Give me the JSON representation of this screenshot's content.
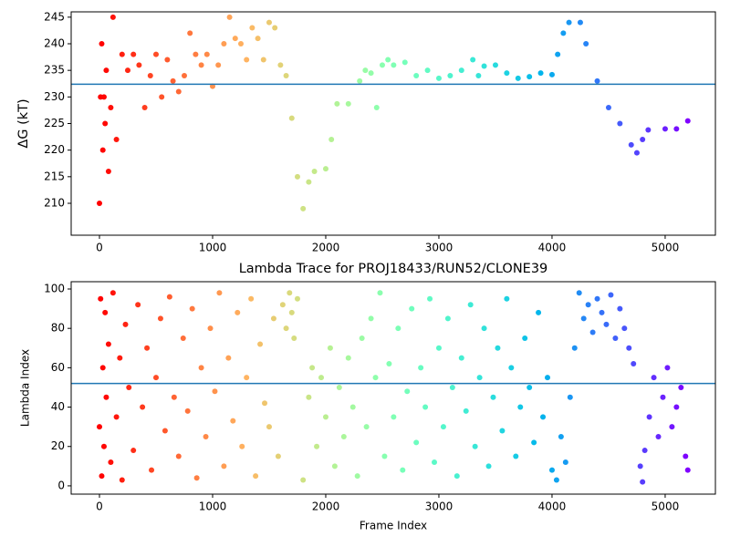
{
  "chart_data": [
    {
      "type": "scatter",
      "ylabel": "ΔG (kT)",
      "colormap": "rainbow_r",
      "x": [
        0,
        10,
        20,
        30,
        40,
        50,
        60,
        80,
        100,
        120,
        150,
        200,
        250,
        300,
        350,
        400,
        450,
        500,
        550,
        600,
        650,
        700,
        750,
        800,
        850,
        900,
        950,
        1000,
        1050,
        1100,
        1150,
        1200,
        1250,
        1300,
        1350,
        1400,
        1450,
        1500,
        1550,
        1600,
        1650,
        1700,
        1750,
        1800,
        1850,
        1900,
        2000,
        2050,
        2100,
        2200,
        2300,
        2350,
        2400,
        2450,
        2500,
        2550,
        2600,
        2700,
        2800,
        2900,
        3000,
        3100,
        3200,
        3300,
        3350,
        3400,
        3500,
        3600,
        3700,
        3800,
        3900,
        4000,
        4050,
        4100,
        4150,
        4250,
        4300,
        4400,
        4500,
        4600,
        4700,
        4750,
        4800,
        4850,
        5000,
        5100,
        5200
      ],
      "values": [
        210,
        230,
        240,
        220,
        230,
        225,
        235,
        216,
        228,
        245,
        222,
        238,
        235,
        238,
        236,
        228,
        234,
        238,
        230,
        237,
        233,
        231,
        234,
        242,
        238,
        236,
        238,
        232,
        236,
        240,
        245,
        241,
        240,
        237,
        243,
        241,
        237,
        244,
        243,
        236,
        234,
        226,
        215,
        209,
        214,
        216,
        216.5,
        222,
        228.7,
        228.7,
        233,
        235,
        234.5,
        228,
        236,
        237,
        236,
        236.5,
        234,
        235,
        233.5,
        234,
        235,
        237,
        234,
        235.8,
        236,
        234.5,
        233.5,
        233.8,
        234.5,
        234.2,
        238,
        242,
        244,
        244,
        240,
        233,
        228,
        225,
        221,
        219.5,
        222,
        223.8,
        224,
        224,
        225.5
      ],
      "hline": 232.4,
      "hline_color": "#1f77b4",
      "xlim": [
        -250,
        5444
      ],
      "xticks": [
        0,
        1000,
        2000,
        3000,
        4000,
        5000
      ],
      "ylim": [
        204,
        246
      ],
      "yticks": [
        210,
        215,
        220,
        225,
        230,
        235,
        240,
        245
      ]
    },
    {
      "type": "scatter",
      "title": "Lambda Trace for PROJ18433/RUN52/CLONE39",
      "xlabel": "Frame Index",
      "ylabel": "Lambda Index",
      "colormap": "rainbow_r",
      "x": [
        0,
        10,
        20,
        30,
        40,
        50,
        60,
        80,
        100,
        120,
        150,
        180,
        200,
        230,
        260,
        300,
        340,
        380,
        420,
        460,
        500,
        540,
        580,
        620,
        660,
        700,
        740,
        780,
        820,
        860,
        900,
        940,
        980,
        1020,
        1060,
        1100,
        1140,
        1180,
        1220,
        1260,
        1300,
        1340,
        1380,
        1420,
        1460,
        1500,
        1540,
        1580,
        1620,
        1650,
        1680,
        1700,
        1720,
        1750,
        1800,
        1850,
        1880,
        1920,
        1960,
        2000,
        2040,
        2080,
        2120,
        2160,
        2200,
        2240,
        2280,
        2320,
        2360,
        2400,
        2440,
        2480,
        2520,
        2560,
        2600,
        2640,
        2680,
        2720,
        2760,
        2800,
        2840,
        2880,
        2920,
        2960,
        3000,
        3040,
        3080,
        3120,
        3160,
        3200,
        3240,
        3280,
        3320,
        3360,
        3400,
        3440,
        3480,
        3520,
        3560,
        3600,
        3640,
        3680,
        3720,
        3760,
        3800,
        3840,
        3880,
        3920,
        3960,
        4000,
        4040,
        4080,
        4120,
        4160,
        4200,
        4240,
        4280,
        4320,
        4360,
        4400,
        4440,
        4480,
        4520,
        4560,
        4600,
        4640,
        4680,
        4720,
        4780,
        4800,
        4820,
        4860,
        4900,
        4940,
        4980,
        5020,
        5060,
        5100,
        5140,
        5180,
        5200
      ],
      "values": [
        30,
        95,
        5,
        60,
        20,
        88,
        45,
        72,
        12,
        98,
        35,
        65,
        3,
        82,
        50,
        18,
        92,
        40,
        70,
        8,
        55,
        85,
        28,
        96,
        45,
        15,
        75,
        38,
        90,
        4,
        60,
        25,
        80,
        48,
        98,
        10,
        65,
        33,
        88,
        20,
        55,
        95,
        5,
        72,
        42,
        30,
        85,
        15,
        92,
        80,
        98,
        88,
        75,
        95,
        3,
        45,
        60,
        20,
        55,
        35,
        70,
        10,
        50,
        25,
        65,
        40,
        5,
        75,
        30,
        85,
        55,
        98,
        15,
        62,
        35,
        80,
        8,
        48,
        90,
        22,
        60,
        40,
        95,
        12,
        70,
        30,
        85,
        50,
        5,
        65,
        38,
        92,
        20,
        55,
        80,
        10,
        45,
        70,
        28,
        95,
        60,
        15,
        40,
        75,
        50,
        22,
        88,
        35,
        55,
        8,
        3,
        25,
        12,
        45,
        70,
        98,
        85,
        92,
        78,
        95,
        88,
        82,
        97,
        75,
        90,
        80,
        70,
        62,
        10,
        2,
        18,
        35,
        55,
        25,
        45,
        60,
        30,
        40,
        50,
        15,
        8
      ],
      "hline": 52,
      "hline_color": "#1f77b4",
      "xlim": [
        -250,
        5444
      ],
      "xticks": [
        0,
        1000,
        2000,
        3000,
        4000,
        5000
      ],
      "ylim": [
        -4.2,
        103.7
      ],
      "yticks": [
        0,
        20,
        40,
        60,
        80,
        100
      ]
    }
  ]
}
